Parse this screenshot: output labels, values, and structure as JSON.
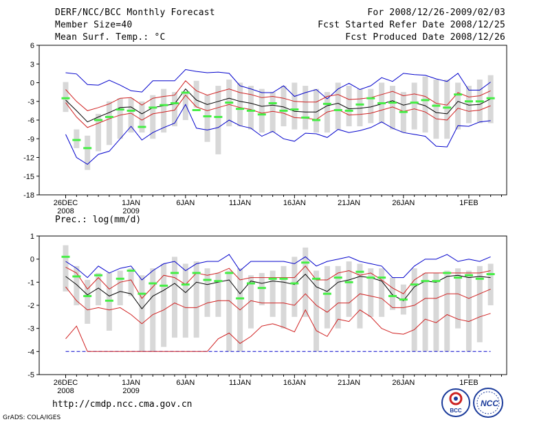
{
  "header": {
    "title": "DERF/NCC/BCC Monthly Forecast",
    "member_size": "Member Size=40",
    "variable": "Mean Surf. Temp.: °C",
    "period": "For 2008/12/26-2009/02/03",
    "start_date": "Fcst Started Refer Date 2008/12/25",
    "produced_date": "Fcst Produced Date 2008/12/26"
  },
  "footer": {
    "url": "http://cmdp.ncc.cma.gov.cn",
    "credit": "GrADS: COLA/IGES",
    "logo_left_text": "BCC",
    "logo_right_text": "NCC"
  },
  "colors": {
    "bar": "#d8d8d8",
    "mean": "#000000",
    "inner": "#d02020",
    "outer": "#0000cc",
    "obs": "#44ee44"
  },
  "chart_data": [
    {
      "type": "line",
      "title": "Mean Surf. Temp.: °C",
      "ylim": [
        -18,
        6
      ],
      "yticks": [
        6,
        3,
        0,
        -3,
        -6,
        -9,
        -12,
        -15,
        -18
      ],
      "xticks": [
        {
          "day": 0,
          "label": "26DEC",
          "sub": "2008"
        },
        {
          "day": 6,
          "label": "1JAN",
          "sub": "2009"
        },
        {
          "day": 11,
          "label": "6JAN",
          "sub": ""
        },
        {
          "day": 16,
          "label": "11JAN",
          "sub": ""
        },
        {
          "day": 21,
          "label": "16JAN",
          "sub": ""
        },
        {
          "day": 26,
          "label": "21JAN",
          "sub": ""
        },
        {
          "day": 31,
          "label": "26JAN",
          "sub": ""
        },
        {
          "day": 37,
          "label": "1FEB",
          "sub": ""
        }
      ],
      "bar_low": [
        -4.7,
        -10.5,
        -14,
        -11,
        -10,
        -9,
        -8,
        -8,
        -9,
        -8,
        -7,
        -6,
        -4,
        -9.5,
        -11.5,
        -7,
        -7,
        -7.5,
        -8,
        -8,
        -7,
        -7.5,
        -7.5,
        -8,
        -8,
        -7.5,
        -7,
        -7,
        -6.5,
        -6.5,
        -7.5,
        -8,
        -7.5,
        -8,
        -9,
        -9,
        -7.5,
        -6.5,
        -6.5,
        -6.5
      ],
      "bar_high": [
        0.1,
        -7.5,
        -8.5,
        -5,
        -3,
        -2.5,
        -2.5,
        -3,
        -2,
        -1,
        -1.5,
        -1.5,
        0.3,
        -2,
        -0.5,
        0.5,
        0,
        -0.5,
        -1,
        -1.5,
        -0.5,
        0,
        -0.5,
        -1,
        -1.5,
        0,
        -0.5,
        -1,
        -1,
        0,
        -0.5,
        -1.5,
        0,
        1,
        0.5,
        0.5,
        0,
        -0.5,
        0.5,
        1.2
      ],
      "obs": [
        -2.5,
        -9.2,
        -10.5,
        -6,
        -5.5,
        -4.3,
        -4.5,
        -7.1,
        -4,
        -3.6,
        -3.3,
        -1.6,
        -4.4,
        -5.4,
        -5.5,
        -3.2,
        -4.2,
        -4.5,
        -5.1,
        -3.3,
        -4.5,
        -4.3,
        -5.6,
        -6,
        -3.4,
        -4.4,
        -4.5,
        -3.5,
        -2.5,
        -3.3,
        -3.2,
        -4.7,
        -3.2,
        -2.8,
        -3.7,
        -4,
        -1.9,
        -3,
        -3,
        -2.5
      ],
      "mean": [
        -2.8,
        -4.5,
        -6.3,
        -5.5,
        -4.8,
        -4.0,
        -3.9,
        -5.0,
        -4.0,
        -3.7,
        -3.4,
        -1.0,
        -2.8,
        -3.5,
        -3.0,
        -2.5,
        -3.0,
        -3.3,
        -3.8,
        -3.6,
        -3.9,
        -4.6,
        -4.7,
        -4.7,
        -3.7,
        -3.3,
        -4.2,
        -4.1,
        -3.9,
        -3.4,
        -2.9,
        -3.6,
        -3.2,
        -3.7,
        -4.8,
        -5.0,
        -3.0,
        -3.6,
        -3.5,
        -2.6
      ],
      "inner_low": [
        -3.2,
        -5.5,
        -7.2,
        -6.5,
        -5.8,
        -5.2,
        -4.9,
        -6.0,
        -5.0,
        -4.7,
        -4.4,
        -2.0,
        -3.9,
        -4.5,
        -4.0,
        -3.5,
        -4.0,
        -4.3,
        -4.9,
        -4.6,
        -4.9,
        -5.6,
        -5.7,
        -5.9,
        -4.7,
        -4.3,
        -5.2,
        -5.1,
        -4.9,
        -4.4,
        -3.9,
        -4.6,
        -4.2,
        -4.7,
        -5.8,
        -6.0,
        -4.1,
        -4.6,
        -4.4,
        -3.7
      ],
      "inner_high": [
        -1.1,
        -3.0,
        -4.5,
        -4.0,
        -3.4,
        -2.5,
        -2.4,
        -3.6,
        -2.5,
        -2.2,
        -2.0,
        0.3,
        -1.3,
        -2.0,
        -1.5,
        -1.0,
        -1.6,
        -1.9,
        -2.4,
        -2.2,
        -2.5,
        -3.0,
        -3.1,
        -3.1,
        -2.2,
        -1.9,
        -2.7,
        -2.6,
        -2.4,
        -1.9,
        -1.4,
        -2.1,
        -1.8,
        -2.2,
        -3.3,
        -3.6,
        -1.6,
        -2.3,
        -2.1,
        -1.3
      ],
      "outer_low": [
        -8.3,
        -12.0,
        -13.1,
        -11.5,
        -11.0,
        -9.0,
        -7.0,
        -9.2,
        -8.0,
        -7.2,
        -6.5,
        -3.5,
        -7.3,
        -7.6,
        -7.2,
        -6.0,
        -6.9,
        -7.3,
        -8.6,
        -7.8,
        -9.0,
        -9.4,
        -8.1,
        -8.2,
        -8.8,
        -7.5,
        -8.0,
        -7.7,
        -7.2,
        -6.3,
        -7.3,
        -8.0,
        -8.3,
        -8.6,
        -10.2,
        -10.3,
        -6.9,
        -7.0,
        -6.3,
        -6.1
      ],
      "outer_high": [
        1.6,
        1.4,
        -0.3,
        -0.4,
        0.4,
        -0.4,
        -1.3,
        -1.5,
        0.3,
        0.3,
        0.3,
        2.1,
        1.8,
        1.6,
        1.7,
        1.5,
        -0.5,
        -1.0,
        -1.6,
        -1.6,
        -0.5,
        -2.2,
        -1.6,
        -1.1,
        -2.6,
        -1.0,
        -0.1,
        -1.1,
        -0.5,
        0.8,
        0.2,
        1.5,
        1.3,
        1.2,
        0.6,
        0.2,
        1.5,
        -1.2,
        -1.2,
        0.1
      ]
    },
    {
      "type": "line",
      "title": "Prec.: log(mm/d)",
      "ylim": [
        -5,
        1
      ],
      "yticks": [
        1,
        0,
        -1,
        -2,
        -3,
        -4,
        -5
      ],
      "xticks": [
        {
          "day": 0,
          "label": "26DEC",
          "sub": "2008"
        },
        {
          "day": 6,
          "label": "1JAN",
          "sub": "2009"
        },
        {
          "day": 11,
          "label": "6JAN",
          "sub": ""
        },
        {
          "day": 16,
          "label": "11JAN",
          "sub": ""
        },
        {
          "day": 21,
          "label": "16JAN",
          "sub": ""
        },
        {
          "day": 26,
          "label": "21JAN",
          "sub": ""
        },
        {
          "day": 31,
          "label": "26JAN",
          "sub": ""
        },
        {
          "day": 37,
          "label": "1FEB",
          "sub": ""
        }
      ],
      "bar_low": [
        -1.4,
        -2,
        -2.8,
        -2,
        -3.1,
        -2,
        -1.6,
        -4,
        -4,
        -3.8,
        -3.4,
        -3.4,
        -3.4,
        -2.5,
        -2.5,
        -4,
        -4,
        -3,
        -2,
        -2.5,
        -3,
        -2.5,
        -2.5,
        -4,
        -3,
        -3,
        -2.5,
        -3,
        -2.5,
        -2.5,
        -2.2,
        -2.4,
        -4,
        -4,
        -4,
        -4,
        -3,
        -4,
        -3.6,
        -2
      ],
      "bar_high": [
        0.6,
        -0.3,
        -0.9,
        -0.6,
        -0.6,
        -0.5,
        -0.4,
        -0.7,
        -0.4,
        -0.2,
        0.1,
        -0.2,
        -0.1,
        -0.4,
        -0.6,
        -0.5,
        -0.4,
        -0.7,
        -0.6,
        -0.5,
        -0.3,
        0.1,
        0.5,
        -0.5,
        -0.3,
        -0.3,
        -0.1,
        -0.2,
        -0.4,
        -0.4,
        -0.8,
        -1.1,
        -0.4,
        -0.6,
        -0.6,
        -0.5,
        -0.4,
        -0.5,
        -0.3,
        -0.2
      ],
      "obs": [
        0.1,
        -0.75,
        -1.6,
        -0.7,
        -1.8,
        -0.85,
        -0.5,
        -1.5,
        -1.05,
        -1.15,
        -0.6,
        -1.1,
        -0.6,
        -0.9,
        -0.95,
        -0.6,
        -1.7,
        -1.05,
        -1.25,
        -0.85,
        -0.85,
        -1.05,
        -0.15,
        -0.85,
        -1.5,
        -0.8,
        -1.0,
        -0.55,
        -0.8,
        -0.8,
        -1.6,
        -1.75,
        -1.1,
        -0.95,
        -0.95,
        -0.6,
        -0.8,
        -0.7,
        -0.85,
        -0.65
      ],
      "mean": [
        -0.75,
        -1.1,
        -1.55,
        -1.25,
        -1.6,
        -1.4,
        -1.5,
        -2.15,
        -1.6,
        -1.35,
        -1.05,
        -1.45,
        -1.0,
        -1.1,
        -1.0,
        -0.9,
        -1.5,
        -0.95,
        -1.05,
        -0.95,
        -1.0,
        -1.1,
        -0.65,
        -1.2,
        -1.4,
        -1.0,
        -0.9,
        -0.75,
        -0.8,
        -0.95,
        -1.55,
        -1.8,
        -1.2,
        -0.95,
        -1.0,
        -0.75,
        -0.7,
        -0.8,
        -0.75,
        -0.8
      ],
      "inner_low": [
        -1.2,
        -1.8,
        -2.2,
        -2.1,
        -2.2,
        -2.1,
        -2.4,
        -2.8,
        -2.4,
        -2.2,
        -1.9,
        -2.1,
        -2.1,
        -1.9,
        -1.8,
        -1.8,
        -2.2,
        -1.8,
        -1.9,
        -1.9,
        -1.9,
        -2.0,
        -1.5,
        -2.0,
        -2.3,
        -1.9,
        -1.9,
        -1.5,
        -1.6,
        -1.7,
        -2.1,
        -2.1,
        -2.0,
        -1.7,
        -1.7,
        -1.5,
        -1.5,
        -1.7,
        -1.5,
        -1.3
      ],
      "inner_high": [
        -0.35,
        -0.6,
        -1.3,
        -0.8,
        -1.3,
        -1.0,
        -0.9,
        -1.7,
        -1.2,
        -0.7,
        -0.8,
        -1.1,
        -0.6,
        -0.7,
        -0.6,
        -0.4,
        -0.9,
        -0.8,
        -0.8,
        -0.8,
        -0.8,
        -0.8,
        -0.3,
        -0.9,
        -0.9,
        -0.6,
        -0.5,
        -0.7,
        -0.6,
        -0.9,
        -1.25,
        -1.5,
        -0.9,
        -0.6,
        -0.6,
        -0.6,
        -0.6,
        -0.6,
        -0.6,
        -0.5
      ],
      "outer_low": [
        -3.45,
        -2.9,
        -4.0,
        -4.0,
        -4.0,
        -4.0,
        -4.0,
        -4.0,
        -4.0,
        -4.0,
        -4.0,
        -4.0,
        -4.0,
        -4.0,
        -3.45,
        -3.2,
        -3.65,
        -3.35,
        -2.9,
        -2.8,
        -2.95,
        -3.15,
        -2.2,
        -3.1,
        -3.35,
        -2.6,
        -2.7,
        -2.2,
        -2.5,
        -3.0,
        -3.2,
        -3.25,
        -3.05,
        -2.6,
        -2.75,
        -2.4,
        -2.6,
        -2.7,
        -2.5,
        -2.35
      ],
      "outer_high": [
        -0.1,
        -0.4,
        -0.8,
        -0.3,
        -0.6,
        -0.4,
        -0.3,
        -0.9,
        -0.5,
        -0.2,
        -0.1,
        -0.5,
        -0.2,
        -0.1,
        -0.1,
        0.2,
        -0.5,
        -0.1,
        -0.1,
        -0.1,
        -0.1,
        -0.2,
        0.1,
        -0.3,
        -0.1,
        0.0,
        0.1,
        -0.1,
        -0.2,
        -0.3,
        -0.8,
        -0.8,
        -0.3,
        0.0,
        0.0,
        0.2,
        -0.1,
        0.0,
        -0.1,
        0.1
      ],
      "floor": [
        -4,
        -4,
        -4,
        -4,
        -4,
        -4,
        -4,
        -4,
        -4,
        -4,
        -4,
        -4,
        -4,
        -4,
        -4,
        -4,
        -4,
        -4,
        -4,
        -4,
        -4,
        -4,
        -4,
        -4,
        -4,
        -4,
        -4,
        -4,
        -4,
        -4,
        -4,
        -4,
        -4,
        -4,
        -4,
        -4,
        -4,
        -4,
        -4,
        -4
      ]
    }
  ]
}
